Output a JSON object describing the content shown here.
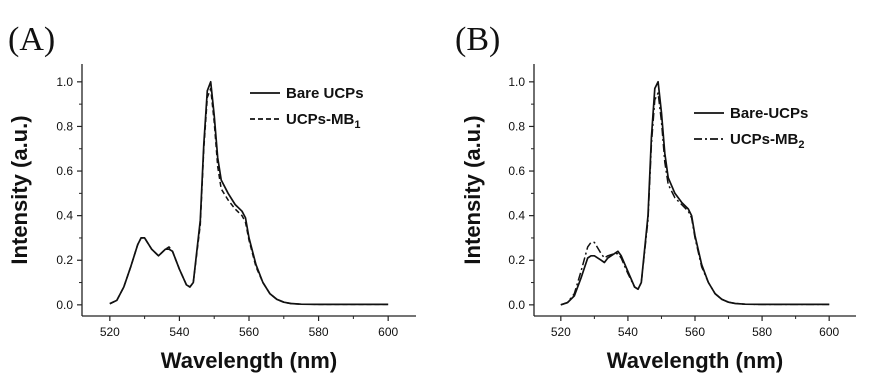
{
  "chart_data": [
    {
      "type": "line",
      "panel": "(A)",
      "xlabel": "Wavelength (nm)",
      "ylabel": "Intensity (a.u.)",
      "xlim": [
        512,
        608
      ],
      "ylim": [
        -0.05,
        1.08
      ],
      "xticks": [
        "520",
        "540",
        "560",
        "580",
        "600"
      ],
      "yticks": [
        "0.0",
        "0.2",
        "0.4",
        "0.6",
        "0.8",
        "1.0"
      ],
      "legend_position": "top-right",
      "series": [
        {
          "name": "Bare UCPs",
          "subscript": "",
          "style": "solid",
          "x": [
            520,
            522,
            524,
            526,
            528,
            529,
            530,
            532,
            534,
            536,
            537,
            538,
            540,
            542,
            543,
            544,
            546,
            547,
            548,
            549,
            550,
            551,
            552,
            554,
            556,
            558,
            559,
            560,
            562,
            564,
            566,
            568,
            570,
            572,
            575,
            580,
            590,
            600
          ],
          "y": [
            0.005,
            0.02,
            0.08,
            0.17,
            0.27,
            0.3,
            0.3,
            0.25,
            0.22,
            0.25,
            0.25,
            0.24,
            0.16,
            0.09,
            0.08,
            0.1,
            0.38,
            0.72,
            0.96,
            1.0,
            0.85,
            0.66,
            0.56,
            0.5,
            0.45,
            0.42,
            0.39,
            0.3,
            0.18,
            0.1,
            0.05,
            0.025,
            0.012,
            0.006,
            0.003,
            0.002,
            0.002,
            0.002
          ]
        },
        {
          "name": "UCPs-MB",
          "subscript": "1",
          "style": "dashed",
          "x": [
            520,
            522,
            524,
            526,
            528,
            529,
            530,
            532,
            534,
            536,
            537,
            538,
            540,
            542,
            543,
            544,
            546,
            547,
            548,
            549,
            550,
            551,
            552,
            554,
            556,
            558,
            559,
            560,
            562,
            564,
            566,
            568,
            570,
            572,
            575,
            580,
            590,
            600
          ],
          "y": [
            0.005,
            0.02,
            0.08,
            0.17,
            0.27,
            0.3,
            0.3,
            0.25,
            0.22,
            0.25,
            0.26,
            0.24,
            0.16,
            0.09,
            0.08,
            0.1,
            0.36,
            0.7,
            0.93,
            0.97,
            0.82,
            0.62,
            0.52,
            0.47,
            0.43,
            0.4,
            0.37,
            0.29,
            0.17,
            0.1,
            0.05,
            0.025,
            0.012,
            0.006,
            0.003,
            0.002,
            0.002,
            0.002
          ]
        }
      ]
    },
    {
      "type": "line",
      "panel": "(B)",
      "xlabel": "Wavelength (nm)",
      "ylabel": "Intensity (a.u.)",
      "xlim": [
        512,
        608
      ],
      "ylim": [
        -0.05,
        1.08
      ],
      "xticks": [
        "520",
        "540",
        "560",
        "580",
        "600"
      ],
      "yticks": [
        "0.0",
        "0.2",
        "0.4",
        "0.6",
        "0.8",
        "1.0"
      ],
      "legend_position": "top-right",
      "series": [
        {
          "name": "Bare-UCPs",
          "subscript": "",
          "style": "solid",
          "x": [
            520,
            522,
            524,
            526,
            528,
            529,
            530,
            532,
            533,
            534,
            536,
            537,
            538,
            540,
            542,
            543,
            544,
            546,
            547,
            548,
            549,
            550,
            551,
            552,
            554,
            556,
            558,
            559,
            560,
            562,
            564,
            566,
            568,
            570,
            572,
            575,
            580,
            590,
            600
          ],
          "y": [
            0.0,
            0.01,
            0.04,
            0.12,
            0.21,
            0.22,
            0.22,
            0.2,
            0.19,
            0.21,
            0.23,
            0.24,
            0.22,
            0.15,
            0.08,
            0.07,
            0.1,
            0.4,
            0.75,
            0.97,
            1.0,
            0.86,
            0.68,
            0.57,
            0.5,
            0.46,
            0.43,
            0.4,
            0.31,
            0.18,
            0.1,
            0.05,
            0.025,
            0.012,
            0.006,
            0.003,
            0.002,
            0.002,
            0.002
          ]
        },
        {
          "name": "UCPs-MB",
          "subscript": "2",
          "style": "dash-dot",
          "x": [
            520,
            522,
            524,
            526,
            528,
            529,
            530,
            532,
            533,
            534,
            536,
            537,
            538,
            540,
            542,
            543,
            544,
            546,
            547,
            548,
            549,
            550,
            551,
            552,
            554,
            556,
            558,
            559,
            560,
            562,
            564,
            566,
            568,
            570,
            572,
            575,
            580,
            590,
            600
          ],
          "y": [
            0.0,
            0.01,
            0.05,
            0.15,
            0.26,
            0.28,
            0.28,
            0.23,
            0.21,
            0.22,
            0.23,
            0.23,
            0.21,
            0.14,
            0.08,
            0.07,
            0.1,
            0.38,
            0.72,
            0.92,
            0.95,
            0.82,
            0.64,
            0.54,
            0.48,
            0.45,
            0.42,
            0.39,
            0.3,
            0.17,
            0.1,
            0.05,
            0.025,
            0.012,
            0.006,
            0.003,
            0.002,
            0.002,
            0.002
          ]
        }
      ]
    }
  ]
}
